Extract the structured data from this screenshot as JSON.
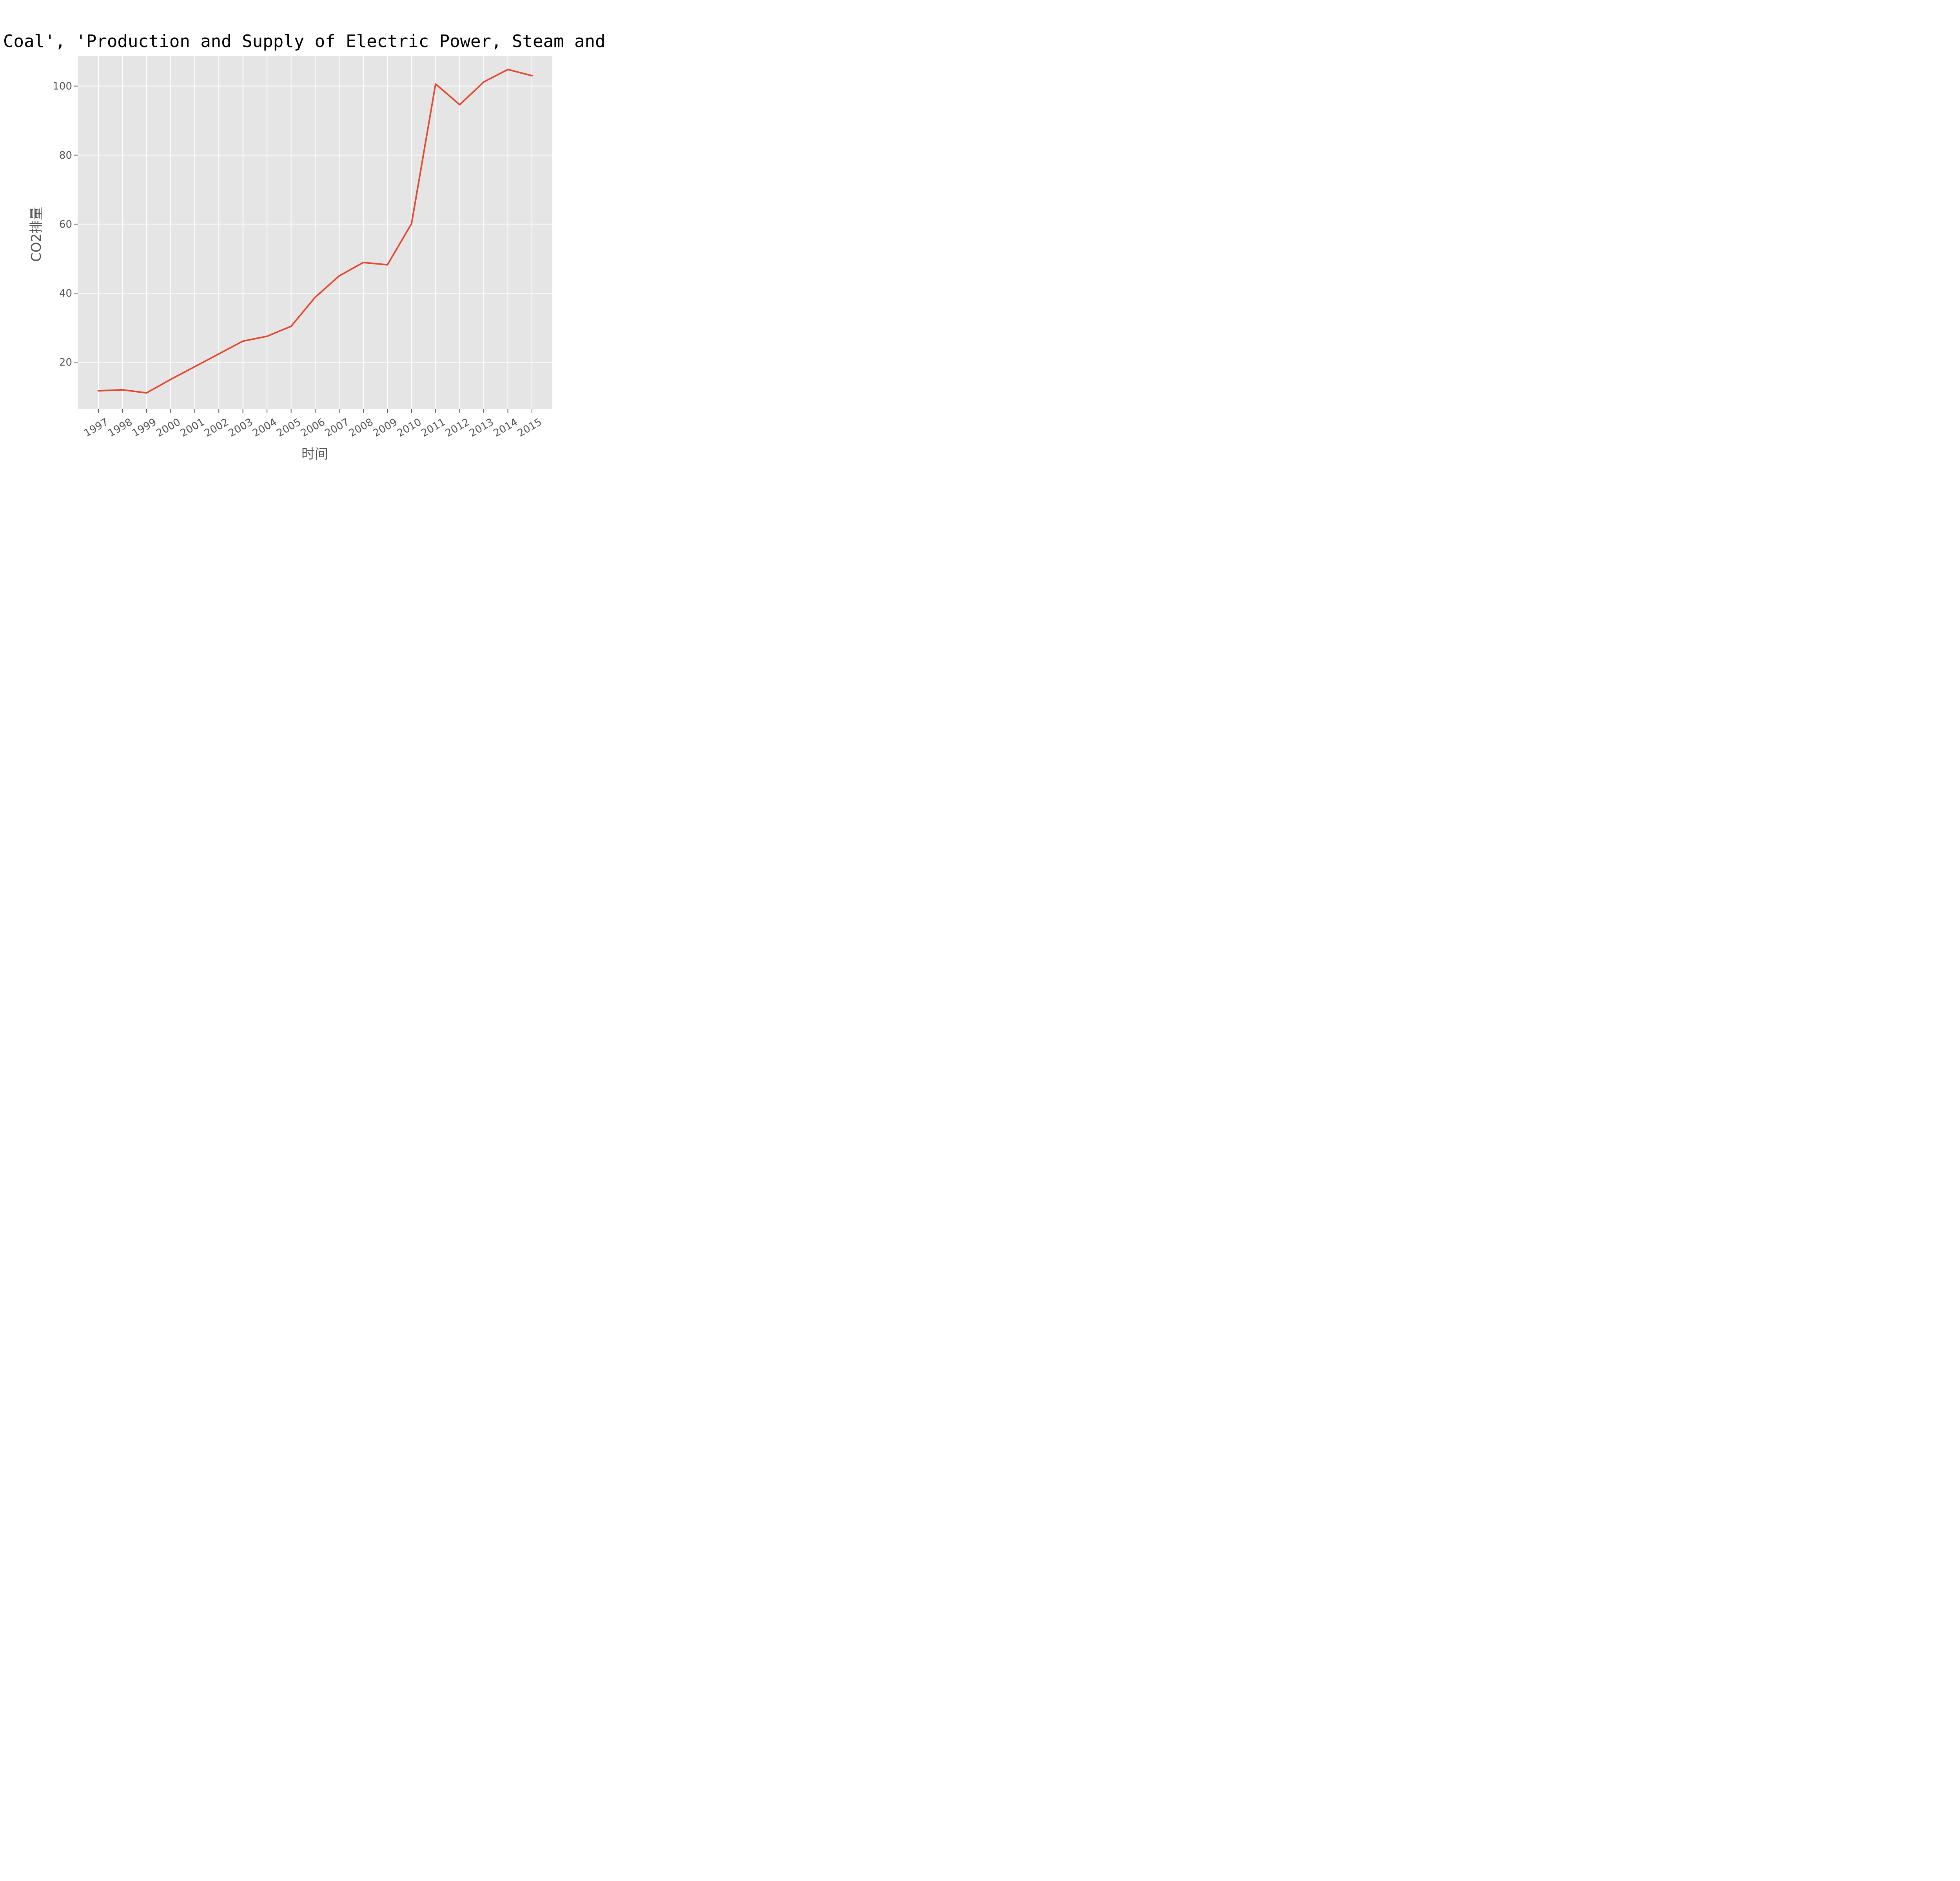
{
  "chart_data": {
    "type": "line",
    "title": "Coal', 'Production and Supply of Electric Power, Steam and Hot W",
    "xlabel": "时间",
    "ylabel": "CO2排量",
    "x": [
      "1997",
      "1998",
      "1999",
      "2000",
      "2001",
      "2002",
      "2003",
      "2004",
      "2005",
      "2006",
      "2007",
      "2008",
      "2009",
      "2010",
      "2011",
      "2012",
      "2013",
      "2014",
      "2015"
    ],
    "series": [
      {
        "values": [
          11.7,
          12.0,
          11.1,
          15.0,
          18.7,
          22.4,
          26.1,
          27.5,
          30.4,
          38.8,
          45.0,
          48.9,
          48.2,
          60.1,
          100.6,
          94.6,
          101.2,
          104.8,
          103.0
        ],
        "color": "#e24a33"
      }
    ],
    "yticks": [
      "20",
      "40",
      "60",
      "80",
      "100"
    ],
    "ylim": [
      6.4,
      108.7
    ],
    "grid": true,
    "style": "ggplot",
    "plot_background": "#e5e5e5"
  }
}
